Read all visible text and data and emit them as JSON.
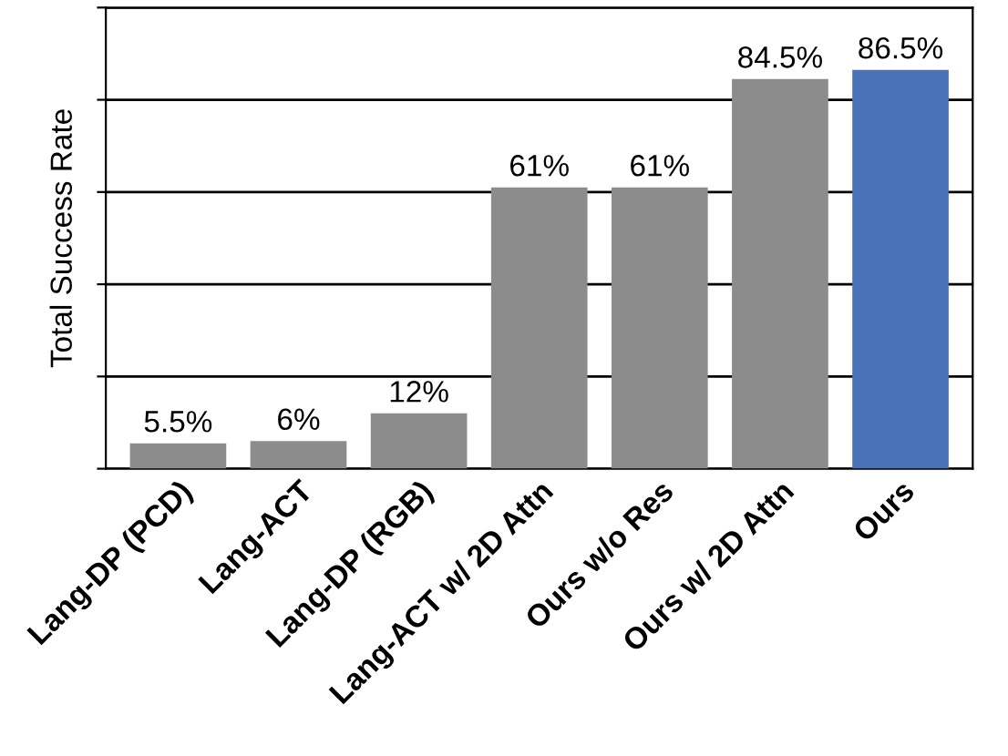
{
  "chart_data": {
    "type": "bar",
    "ylabel": "Total Success Rate",
    "categories": [
      "Lang-DP (PCD)",
      "Lang-ACT",
      "Lang-DP (RGB)",
      "Lang-ACT w/ 2D Attn",
      "Ours w/o Res",
      "Ours w/ 2D Attn",
      "Ours"
    ],
    "values": [
      5.5,
      6,
      12,
      61,
      61,
      84.5,
      86.5
    ],
    "value_labels": [
      "5.5%",
      "6%",
      "12%",
      "61%",
      "61%",
      "84.5%",
      "86.5%"
    ],
    "colors": [
      "#8c8c8c",
      "#8c8c8c",
      "#8c8c8c",
      "#8c8c8c",
      "#8c8c8c",
      "#8c8c8c",
      "#4a72b8"
    ],
    "ylim": [
      0,
      100
    ],
    "yticks": [
      {
        "value": 0,
        "label": null
      },
      {
        "value": 20,
        "label": null
      },
      {
        "value": 40,
        "label": null
      },
      {
        "value": 60,
        "label": null
      },
      {
        "value": 80,
        "label": null
      },
      {
        "value": 100,
        "label": null
      }
    ],
    "grid": "y",
    "legend": false
  }
}
